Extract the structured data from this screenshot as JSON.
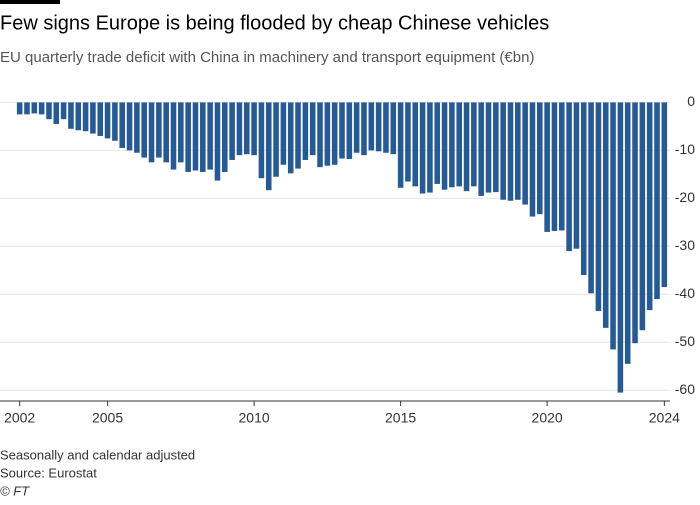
{
  "chart_data": {
    "type": "bar",
    "title": "Few signs Europe is being flooded by cheap Chinese vehicles",
    "subtitle": "EU quarterly trade deficit with China in machinery and transport equipment (€bn)",
    "notes": [
      "Seasonally and calendar adjusted",
      "Source: Eurostat",
      "© FT"
    ],
    "categories": [
      "2002",
      null,
      null,
      null,
      null,
      null,
      null,
      null,
      null,
      null,
      null,
      null,
      "2005",
      null,
      null,
      null,
      null,
      null,
      null,
      null,
      null,
      null,
      null,
      null,
      null,
      null,
      null,
      null,
      null,
      null,
      null,
      null,
      "2010",
      null,
      null,
      null,
      null,
      null,
      null,
      null,
      null,
      null,
      null,
      null,
      null,
      null,
      null,
      null,
      null,
      null,
      null,
      null,
      "2015",
      null,
      null,
      null,
      null,
      null,
      null,
      null,
      null,
      null,
      null,
      null,
      null,
      null,
      null,
      null,
      null,
      null,
      null,
      null,
      "2020",
      null,
      null,
      null,
      null,
      null,
      null,
      null,
      null,
      null,
      null,
      null,
      null,
      null,
      null,
      null,
      "2024"
    ],
    "values": [
      -2.5,
      -2.5,
      -2.3,
      -2.5,
      -3.5,
      -4.5,
      -3.5,
      -5.5,
      -5.8,
      -6,
      -6.5,
      -7,
      -7.5,
      -8,
      -9.5,
      -10,
      -10.5,
      -11.5,
      -12.5,
      -11.5,
      -12.5,
      -14,
      -12.5,
      -14.5,
      -14.2,
      -14.5,
      -14,
      -16.3,
      -14.5,
      -12,
      -11,
      -10.8,
      -11,
      -15.8,
      -18.3,
      -15.5,
      -13,
      -14.8,
      -13.8,
      -12,
      -11,
      -13.5,
      -13.2,
      -13,
      -11.7,
      -11.8,
      -10.5,
      -11,
      -10,
      -10.2,
      -10.5,
      -10.8,
      -17.8,
      -16.5,
      -17.5,
      -19,
      -18.8,
      -17,
      -18.2,
      -17.7,
      -17.5,
      -18.5,
      -17.5,
      -19.5,
      -18.8,
      -18.7,
      -20.3,
      -20.5,
      -20.3,
      -21.3,
      -23.8,
      -23.3,
      -27,
      -26.8,
      -26.7,
      -31,
      -30.5,
      -36,
      -39.8,
      -43.5,
      -47,
      -51.5,
      -60.5,
      -54.5,
      -50.2,
      -47.5,
      -43.3,
      -41,
      -38.5
    ],
    "color": "#265a96",
    "ylim": [
      -61,
      0.5
    ],
    "yticks": [
      0,
      -10,
      -20,
      -30,
      -40,
      -50,
      -60
    ],
    "grid": true
  }
}
